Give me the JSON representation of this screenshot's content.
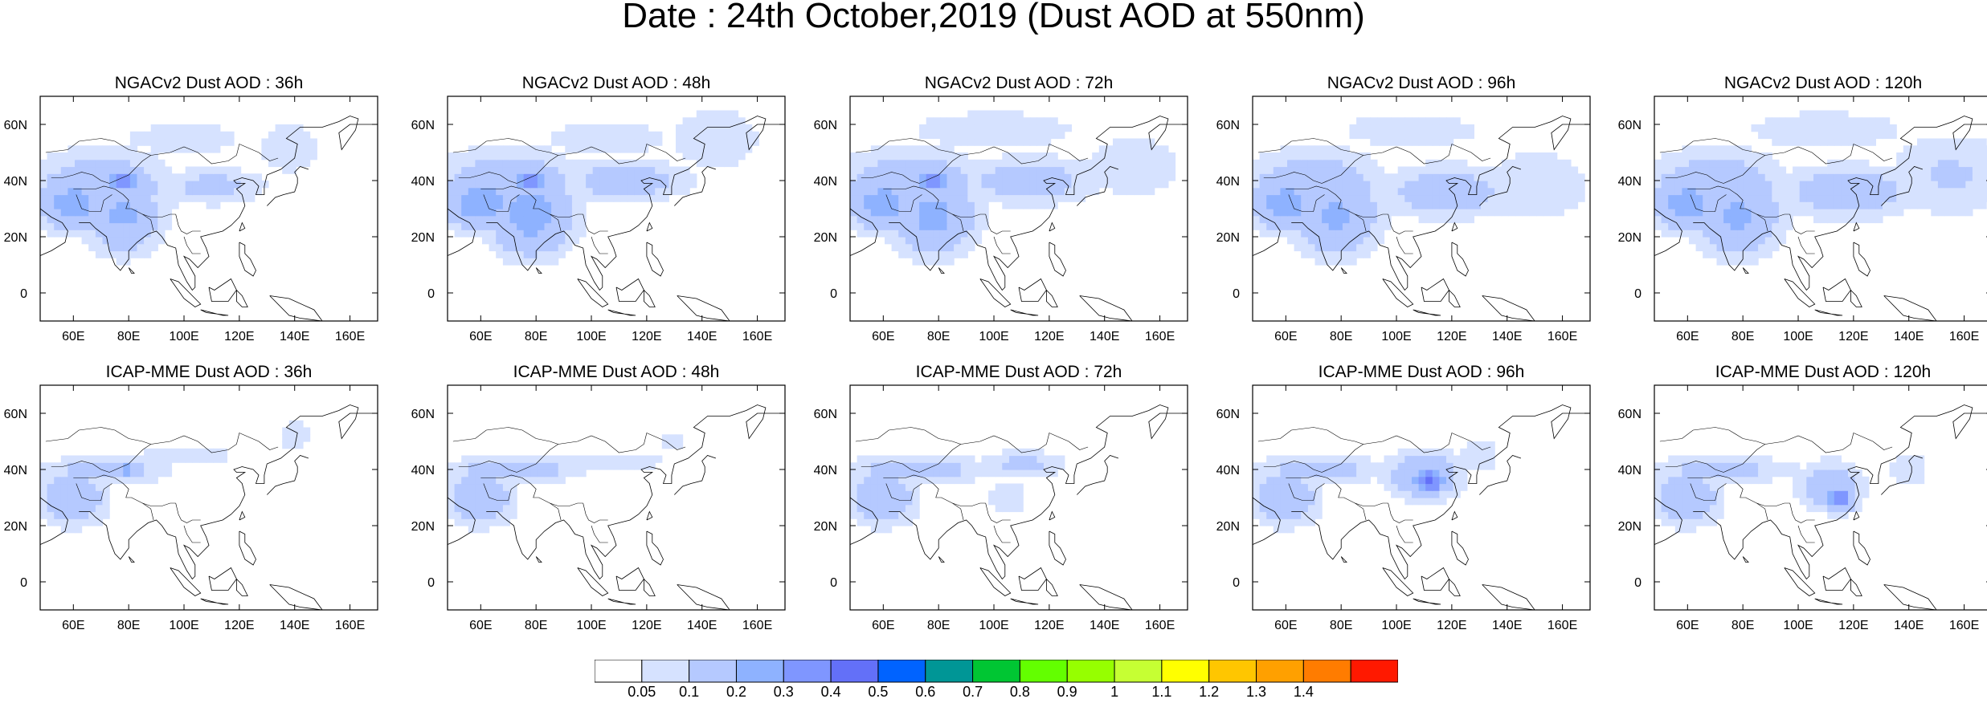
{
  "title": "Date : 24th October,2019 (Dust AOD at 550nm)",
  "panels": [
    {
      "title": "NGACv2 Dust AOD : 36h",
      "model": "NGACv2",
      "lead": "36h",
      "plumes": [
        [
          70,
          37,
          26,
          14,
          0.18
        ],
        [
          78,
          40,
          6,
          3,
          0.4
        ],
        [
          78,
          28,
          14,
          14,
          0.22
        ],
        [
          60,
          32,
          14,
          10,
          0.25
        ],
        [
          110,
          38,
          20,
          7,
          0.13
        ],
        [
          138,
          52,
          12,
          10,
          0.1
        ],
        [
          100,
          55,
          28,
          7,
          0.08
        ]
      ]
    },
    {
      "title": "NGACv2 Dust AOD : 48h",
      "model": "NGACv2",
      "lead": "48h",
      "plumes": [
        [
          70,
          37,
          26,
          14,
          0.2
        ],
        [
          78,
          40,
          6,
          3,
          0.45
        ],
        [
          78,
          28,
          16,
          15,
          0.25
        ],
        [
          60,
          32,
          14,
          10,
          0.27
        ],
        [
          112,
          40,
          24,
          8,
          0.15
        ],
        [
          145,
          55,
          18,
          12,
          0.1
        ],
        [
          105,
          55,
          30,
          8,
          0.08
        ]
      ]
    },
    {
      "title": "NGACv2 Dust AOD : 72h",
      "model": "NGACv2",
      "lead": "72h",
      "plumes": [
        [
          70,
          37,
          26,
          14,
          0.2
        ],
        [
          78,
          40,
          6,
          3,
          0.4
        ],
        [
          78,
          28,
          16,
          15,
          0.23
        ],
        [
          60,
          32,
          14,
          10,
          0.25
        ],
        [
          112,
          40,
          26,
          9,
          0.15
        ],
        [
          150,
          45,
          20,
          12,
          0.1
        ],
        [
          100,
          58,
          36,
          8,
          0.09
        ]
      ]
    },
    {
      "title": "NGACv2 Dust AOD : 96h",
      "model": "NGACv2",
      "lead": "96h",
      "plumes": [
        [
          70,
          37,
          26,
          14,
          0.18
        ],
        [
          78,
          28,
          16,
          15,
          0.22
        ],
        [
          60,
          32,
          14,
          10,
          0.25
        ],
        [
          118,
          36,
          24,
          10,
          0.16
        ],
        [
          150,
          38,
          22,
          14,
          0.1
        ],
        [
          105,
          58,
          34,
          8,
          0.08
        ]
      ]
    },
    {
      "title": "NGACv2 Dust AOD : 120h",
      "model": "NGACv2",
      "lead": "120h",
      "plumes": [
        [
          70,
          37,
          26,
          14,
          0.18
        ],
        [
          78,
          28,
          16,
          15,
          0.22
        ],
        [
          60,
          32,
          14,
          10,
          0.25
        ],
        [
          118,
          36,
          26,
          10,
          0.16
        ],
        [
          155,
          42,
          24,
          16,
          0.11
        ],
        [
          110,
          58,
          34,
          8,
          0.09
        ]
      ]
    },
    {
      "title": "ICAP-MME Dust AOD : 36h",
      "model": "ICAP-MME",
      "lead": "36h",
      "plumes": [
        [
          72,
          40,
          24,
          5,
          0.15
        ],
        [
          80,
          40,
          4,
          2,
          0.35
        ],
        [
          60,
          30,
          12,
          10,
          0.2
        ],
        [
          100,
          45,
          24,
          4,
          0.08
        ],
        [
          140,
          52,
          8,
          7,
          0.08
        ]
      ]
    },
    {
      "title": "ICAP-MME Dust AOD : 48h",
      "model": "ICAP-MME",
      "lead": "48h",
      "plumes": [
        [
          72,
          40,
          24,
          5,
          0.16
        ],
        [
          80,
          40,
          4,
          2,
          0.3
        ],
        [
          60,
          30,
          12,
          10,
          0.2
        ],
        [
          108,
          43,
          24,
          4,
          0.09
        ],
        [
          130,
          50,
          8,
          5,
          0.07
        ]
      ]
    },
    {
      "title": "ICAP-MME Dust AOD : 72h",
      "model": "ICAP-MME",
      "lead": "72h",
      "plumes": [
        [
          72,
          40,
          28,
          5,
          0.15
        ],
        [
          60,
          30,
          12,
          10,
          0.2
        ],
        [
          110,
          42,
          18,
          5,
          0.12
        ],
        [
          105,
          30,
          10,
          8,
          0.08
        ]
      ]
    },
    {
      "title": "ICAP-MME Dust AOD : 96h",
      "model": "ICAP-MME",
      "lead": "96h",
      "plumes": [
        [
          72,
          40,
          28,
          5,
          0.14
        ],
        [
          60,
          30,
          12,
          10,
          0.2
        ],
        [
          112,
          36,
          6,
          5,
          0.45
        ],
        [
          110,
          38,
          14,
          9,
          0.2
        ],
        [
          130,
          45,
          8,
          6,
          0.1
        ]
      ]
    },
    {
      "title": "ICAP-MME Dust AOD : 120h",
      "model": "ICAP-MME",
      "lead": "120h",
      "plumes": [
        [
          72,
          40,
          28,
          5,
          0.14
        ],
        [
          60,
          30,
          12,
          10,
          0.2
        ],
        [
          115,
          30,
          6,
          5,
          0.35
        ],
        [
          112,
          34,
          12,
          9,
          0.18
        ],
        [
          140,
          40,
          8,
          6,
          0.1
        ]
      ]
    }
  ],
  "axes": {
    "lon_ticks": [
      "60E",
      "80E",
      "100E",
      "120E",
      "140E",
      "160E"
    ],
    "lon_values": [
      60,
      80,
      100,
      120,
      140,
      160
    ],
    "lat_ticks": [
      "0",
      "20N",
      "40N",
      "60N"
    ],
    "lat_values": [
      0,
      20,
      40,
      60
    ],
    "lon_range": [
      48,
      170
    ],
    "lat_range": [
      -10,
      70
    ]
  },
  "colorbar": {
    "labels": [
      "0.05",
      "0.1",
      "0.2",
      "0.3",
      "0.4",
      "0.5",
      "0.6",
      "0.7",
      "0.8",
      "0.9",
      "1",
      "1.1",
      "1.2",
      "1.3",
      "1.4"
    ],
    "thresholds": [
      0.05,
      0.1,
      0.2,
      0.3,
      0.4,
      0.5,
      0.6,
      0.7,
      0.8,
      0.9,
      1.0,
      1.1,
      1.2,
      1.3,
      1.4
    ],
    "colors": [
      "#ffffff",
      "#d6e2ff",
      "#b5c9ff",
      "#8eb2ff",
      "#7f96ff",
      "#6370f8",
      "#0063ff",
      "#009696",
      "#00c633",
      "#63ff00",
      "#96ff00",
      "#c6ff33",
      "#ffff00",
      "#ffc600",
      "#ffa000",
      "#ff7c00",
      "#ff1900"
    ]
  }
}
